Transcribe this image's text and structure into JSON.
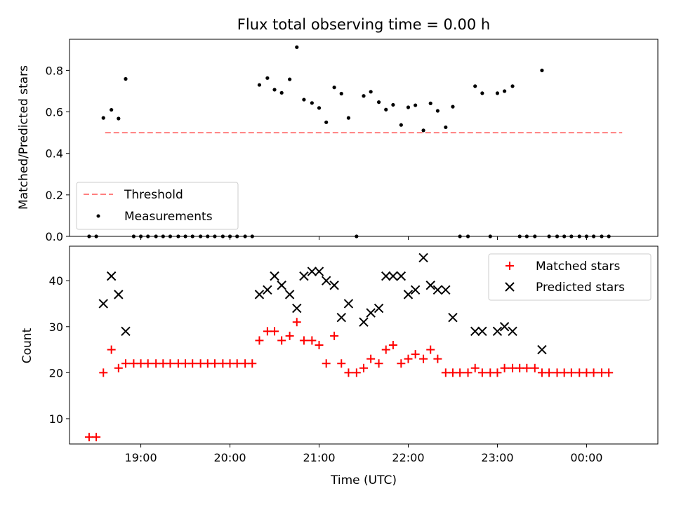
{
  "chart_data": [
    {
      "type": "scatter",
      "panel": "top",
      "title": "Flux total observing time = 0.00 h",
      "ylabel": "Matched/Predicted stars",
      "xlabel": "",
      "ylim": [
        0.0,
        0.95
      ],
      "yticks": [
        0.0,
        0.2,
        0.4,
        0.6,
        0.8
      ],
      "ytick_labels": [
        "0.0",
        "0.2",
        "0.4",
        "0.6",
        "0.8"
      ],
      "legend_position": "lower-left",
      "series": [
        {
          "name": "Threshold",
          "style": "dashed-line",
          "color": "#ff7f7f",
          "x": [
            18.6,
            24.4
          ],
          "y": [
            0.5,
            0.5
          ]
        },
        {
          "name": "Measurements",
          "style": "dot",
          "color": "#000000",
          "x": [
            18.42,
            18.5,
            18.58,
            18.67,
            18.75,
            18.83,
            18.92,
            19.0,
            19.08,
            19.17,
            19.25,
            19.33,
            19.42,
            19.5,
            19.58,
            19.67,
            19.75,
            19.83,
            19.92,
            20.0,
            20.08,
            20.17,
            20.25,
            20.33,
            20.42,
            20.5,
            20.58,
            20.67,
            20.75,
            20.83,
            20.92,
            21.0,
            21.08,
            21.17,
            21.25,
            21.33,
            21.42,
            21.5,
            21.58,
            21.67,
            21.75,
            21.83,
            21.92,
            22.0,
            22.08,
            22.17,
            22.25,
            22.33,
            22.42,
            22.5,
            22.58,
            22.67,
            22.75,
            22.83,
            22.92,
            23.0,
            23.08,
            23.17,
            23.25,
            23.33,
            23.42,
            23.5,
            23.58,
            23.67,
            23.75,
            23.83,
            23.92,
            24.0,
            24.08,
            24.17,
            24.25
          ],
          "y": [
            0.0,
            0.0,
            0.571,
            0.61,
            0.568,
            0.759,
            0.0,
            0.0,
            0.0,
            0.0,
            0.0,
            0.0,
            0.0,
            0.0,
            0.0,
            0.0,
            0.0,
            0.0,
            0.0,
            0.0,
            0.0,
            0.0,
            0.0,
            0.73,
            0.763,
            0.707,
            0.692,
            0.757,
            0.912,
            0.659,
            0.643,
            0.619,
            0.55,
            0.718,
            0.688,
            0.571,
            0.0,
            0.677,
            0.697,
            0.647,
            0.611,
            0.634,
            0.537,
            0.622,
            0.632,
            0.511,
            0.641,
            0.605,
            0.526,
            0.625,
            0.0,
            0.0,
            0.724,
            0.69,
            0.0,
            0.69,
            0.7,
            0.724,
            0.0,
            0.0,
            0.0,
            0.8,
            0.0,
            0.0,
            0.0,
            0.0,
            0.0,
            0.0,
            0.0,
            0.0,
            0.0
          ]
        }
      ]
    },
    {
      "type": "scatter",
      "panel": "bottom",
      "title": "",
      "ylabel": "Count",
      "xlabel": "Time (UTC)",
      "xlim": [
        18.2,
        24.8
      ],
      "xticks": [
        19,
        20,
        21,
        22,
        23,
        24
      ],
      "xtick_labels": [
        "19:00",
        "20:00",
        "21:00",
        "22:00",
        "23:00",
        "00:00"
      ],
      "ylim": [
        4.5,
        47.5
      ],
      "yticks": [
        10,
        20,
        30,
        40
      ],
      "ytick_labels": [
        "10",
        "20",
        "30",
        "40"
      ],
      "legend_position": "top-right",
      "series": [
        {
          "name": "Matched stars",
          "marker": "plus",
          "color": "#ff0000",
          "x": [
            18.42,
            18.5,
            18.58,
            18.67,
            18.75,
            18.83,
            18.92,
            19.0,
            19.08,
            19.17,
            19.25,
            19.33,
            19.42,
            19.5,
            19.58,
            19.67,
            19.75,
            19.83,
            19.92,
            20.0,
            20.08,
            20.17,
            20.25,
            20.33,
            20.42,
            20.5,
            20.58,
            20.67,
            20.75,
            20.83,
            20.92,
            21.0,
            21.08,
            21.17,
            21.25,
            21.33,
            21.42,
            21.5,
            21.58,
            21.67,
            21.75,
            21.83,
            21.92,
            22.0,
            22.08,
            22.17,
            22.25,
            22.33,
            22.42,
            22.5,
            22.58,
            22.67,
            22.75,
            22.83,
            22.92,
            23.0,
            23.08,
            23.17,
            23.25,
            23.33,
            23.42,
            23.5,
            23.58,
            23.67,
            23.75,
            23.83,
            23.92,
            24.0,
            24.08,
            24.17,
            24.25
          ],
          "y": [
            6,
            6,
            20,
            25,
            21,
            22,
            22,
            22,
            22,
            22,
            22,
            22,
            22,
            22,
            22,
            22,
            22,
            22,
            22,
            22,
            22,
            22,
            22,
            27,
            29,
            29,
            27,
            28,
            31,
            27,
            27,
            26,
            22,
            28,
            22,
            20,
            20,
            21,
            23,
            22,
            25,
            26,
            22,
            23,
            24,
            23,
            25,
            23,
            20,
            20,
            20,
            20,
            21,
            20,
            20,
            20,
            21,
            21,
            21,
            21,
            21,
            20,
            20,
            20,
            20,
            20,
            20,
            20,
            20,
            20,
            20
          ]
        },
        {
          "name": "Predicted stars",
          "marker": "x",
          "color": "#000000",
          "x": [
            18.58,
            18.67,
            18.75,
            18.83,
            20.33,
            20.42,
            20.5,
            20.58,
            20.67,
            20.75,
            20.83,
            20.92,
            21.0,
            21.08,
            21.17,
            21.25,
            21.33,
            21.5,
            21.58,
            21.67,
            21.75,
            21.83,
            21.92,
            22.0,
            22.08,
            22.17,
            22.25,
            22.33,
            22.42,
            22.5,
            22.75,
            22.83,
            23.0,
            23.08,
            23.17,
            23.5
          ],
          "y": [
            35,
            41,
            37,
            29,
            37,
            38,
            41,
            39,
            37,
            34,
            41,
            42,
            42,
            40,
            39,
            32,
            35,
            31,
            33,
            34,
            41,
            41,
            41,
            37,
            38,
            45,
            39,
            38,
            38,
            32,
            29,
            29,
            29,
            30,
            29,
            25
          ]
        }
      ]
    }
  ]
}
